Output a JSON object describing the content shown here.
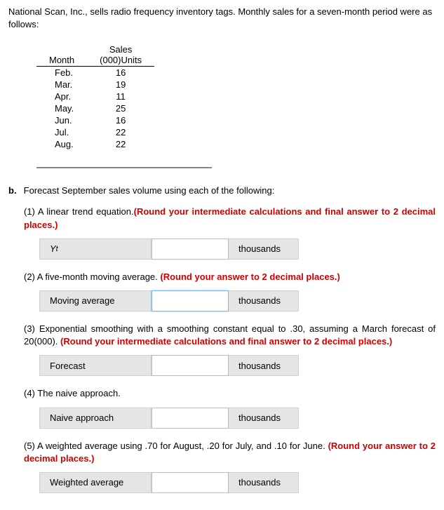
{
  "intro": "National Scan, Inc., sells radio frequency inventory tags. Monthly sales for a seven-month period were as follows:",
  "table": {
    "header_month": "Month",
    "header_sales_l1": "Sales",
    "header_sales_l2": "(000)Units",
    "rows": [
      {
        "m": "Feb.",
        "v": "16"
      },
      {
        "m": "Mar.",
        "v": "19"
      },
      {
        "m": "Apr.",
        "v": "11"
      },
      {
        "m": "May.",
        "v": "25"
      },
      {
        "m": "Jun.",
        "v": "16"
      },
      {
        "m": "Jul.",
        "v": "22"
      },
      {
        "m": "Aug.",
        "v": "22"
      }
    ]
  },
  "part_b_label": "b.",
  "part_b_text": "Forecast September sales volume using each of the following:",
  "unit": "thousands",
  "q1": {
    "num": "(1)",
    "text": "A linear trend equation.",
    "note": "(Round your intermediate calculations and final answer to 2 decimal places.)",
    "label_html": "Y",
    "label_sub": "t"
  },
  "q2": {
    "num": "(2)",
    "text": "A five-month moving average. ",
    "note": "(Round your answer to 2 decimal places.)",
    "label": "Moving average"
  },
  "q3": {
    "num": "(3)",
    "text": "Exponential smoothing with a smoothing constant equal to .30, assuming a March forecast of 20(000). ",
    "note": "(Round your intermediate calculations and final answer to 2 decimal places.)",
    "label": "Forecast"
  },
  "q4": {
    "num": "(4)",
    "text": "The naive approach.",
    "label": "Naive approach"
  },
  "q5": {
    "num": "(5)",
    "text": "A weighted average using .70 for August, .20 for July, and .10 for June. ",
    "note": "(Round your answer to 2 decimal places.)",
    "label": "Weighted average"
  }
}
